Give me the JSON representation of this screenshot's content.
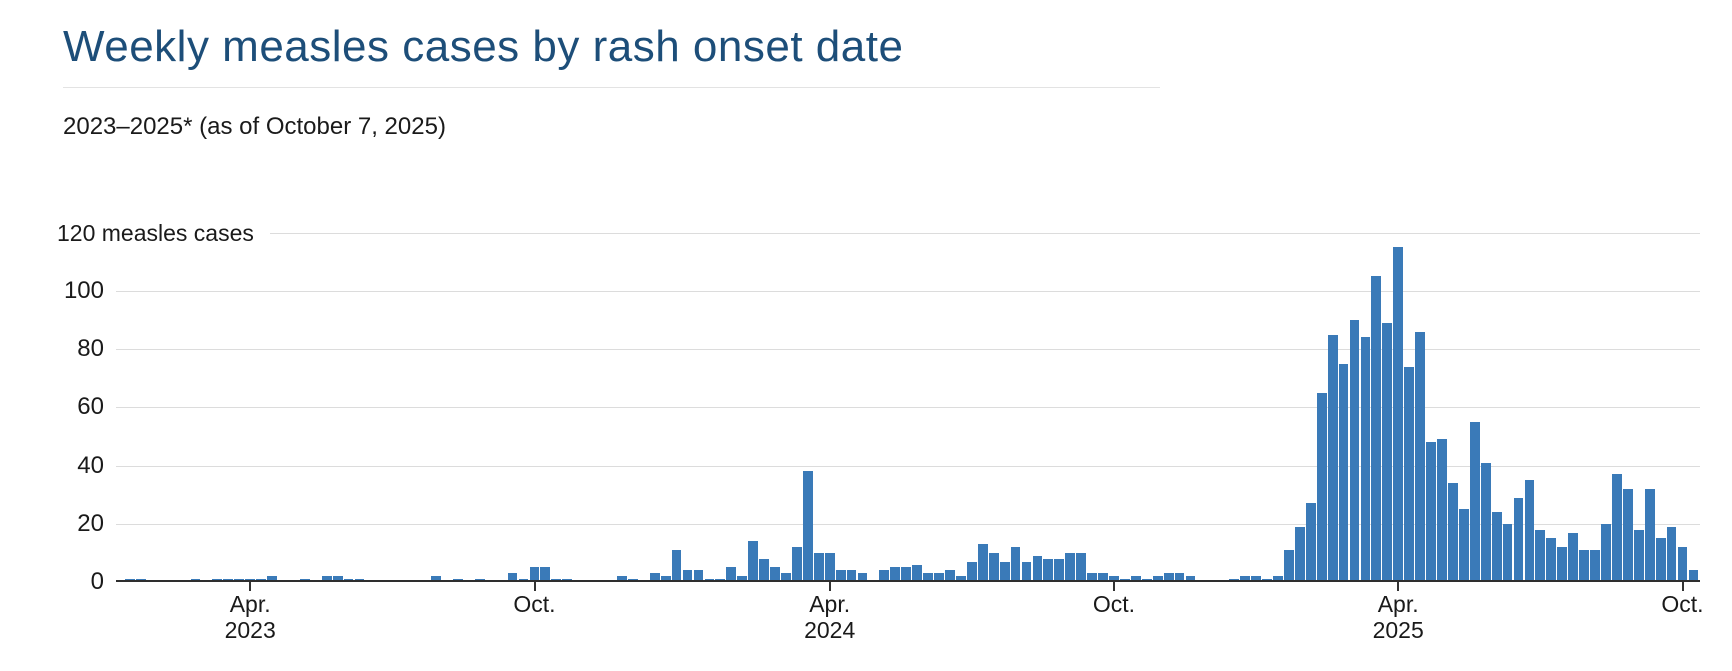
{
  "chart_data": {
    "type": "bar",
    "title": "Weekly measles cases by rash onset date",
    "subtitle": "2023–2025* (as of October 7, 2025)",
    "ylabel": "measles cases",
    "ylim": [
      0,
      120
    ],
    "grid": true,
    "legend": "none",
    "colors": {
      "bar": "#3a7ab8",
      "title": "#1d4e79",
      "gridline": "#dcdcdc",
      "axis": "#2e2e2e",
      "text": "#1a1a1a"
    },
    "y_axis": {
      "top_label": "120 measles cases",
      "tick_values": [
        100,
        80,
        60,
        40,
        20,
        0
      ],
      "gridline_values": [
        100,
        80,
        60,
        40,
        20
      ]
    },
    "x_axis": {
      "description": "weeks from January 2023 through early October 2025",
      "ticks": [
        {
          "line1": "Apr.",
          "line2": "2023",
          "week_index": 11
        },
        {
          "line1": "Oct.",
          "line2": "",
          "week_index": 37
        },
        {
          "line1": "Apr.",
          "line2": "2024",
          "week_index": 64
        },
        {
          "line1": "Oct.",
          "line2": "",
          "week_index": 90
        },
        {
          "line1": "Apr.",
          "line2": "2025",
          "week_index": 116
        },
        {
          "line1": "Oct.",
          "line2": "",
          "week_index": 142
        }
      ]
    },
    "weekly_values": [
      1,
      1,
      0,
      0,
      0,
      0,
      1,
      0,
      1,
      1,
      1,
      1,
      1,
      2,
      0,
      0,
      1,
      0,
      2,
      2,
      1,
      1,
      0,
      0,
      0,
      0,
      0,
      0,
      2,
      0,
      1,
      0,
      1,
      0,
      0,
      3,
      1,
      5,
      5,
      1,
      1,
      0,
      0,
      0,
      0,
      2,
      1,
      0,
      3,
      2,
      11,
      4,
      4,
      1,
      1,
      5,
      2,
      14,
      8,
      5,
      3,
      12,
      38,
      10,
      10,
      4,
      4,
      3,
      0,
      4,
      5,
      5,
      6,
      3,
      3,
      4,
      2,
      7,
      13,
      10,
      7,
      12,
      7,
      9,
      8,
      8,
      10,
      10,
      3,
      3,
      2,
      1,
      2,
      1,
      2,
      3,
      3,
      2,
      0,
      0,
      0,
      1,
      2,
      2,
      1,
      2,
      11,
      19,
      27,
      65,
      85,
      75,
      90,
      84,
      105,
      89,
      115,
      74,
      86,
      48,
      49,
      34,
      25,
      55,
      41,
      24,
      20,
      29,
      35,
      18,
      15,
      12,
      17,
      11,
      11,
      20,
      37,
      32,
      18,
      32,
      15,
      19,
      12,
      4
    ]
  }
}
